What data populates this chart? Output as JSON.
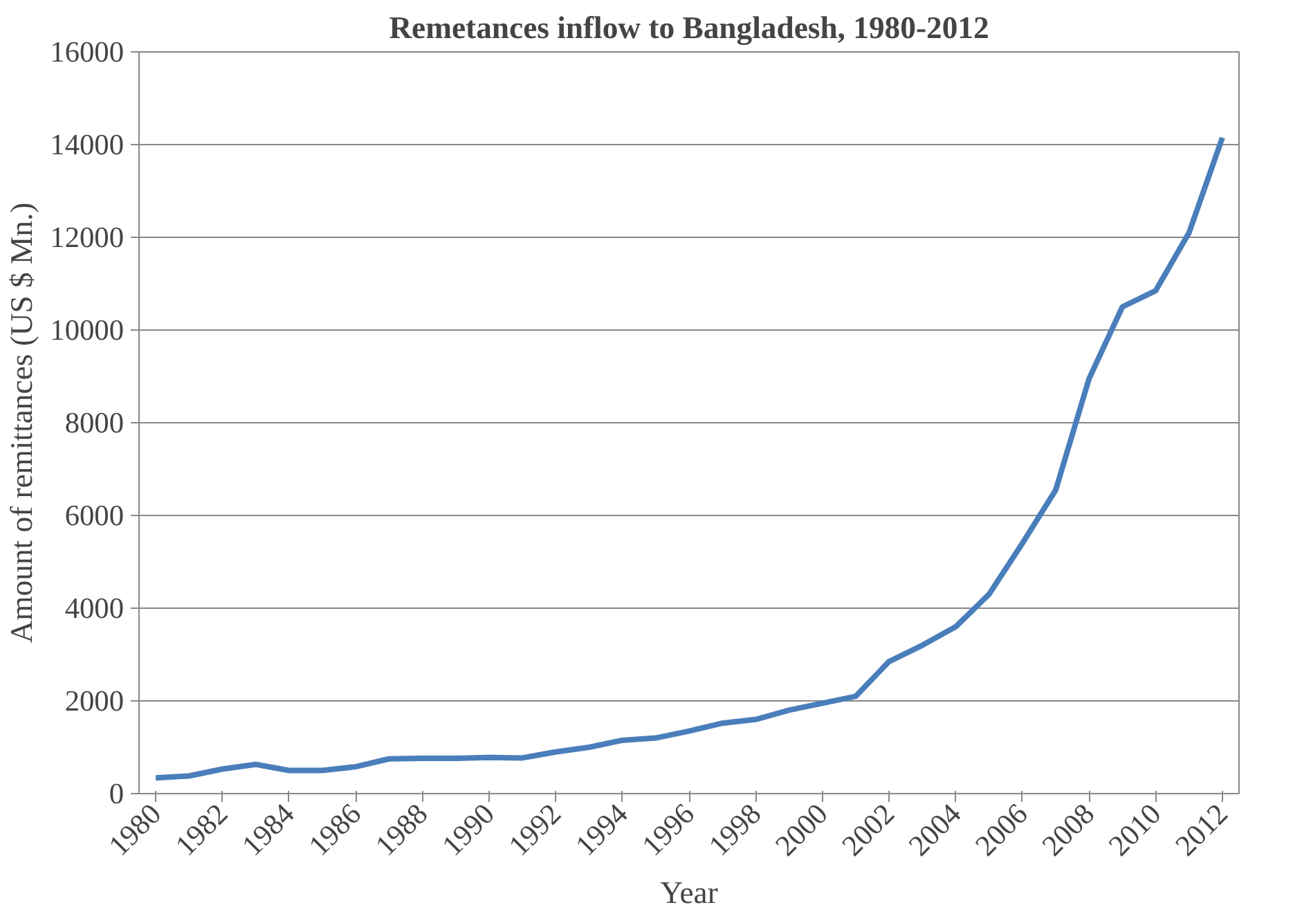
{
  "chart_data": {
    "type": "line",
    "title": "Remetances inflow to Bangladesh, 1980-2012",
    "xlabel": "Year",
    "ylabel": "Amount of remittances (US $ Mn.)",
    "categories": [
      "1980",
      null,
      "1982",
      null,
      "1984",
      null,
      "1986",
      null,
      "1988",
      null,
      "1990",
      null,
      "1992",
      null,
      "1994",
      null,
      "1996",
      null,
      "1998",
      null,
      "2000",
      null,
      "2002",
      null,
      "2004",
      null,
      "2006",
      null,
      "2008",
      null,
      "2010",
      null,
      "2012"
    ],
    "series": [
      {
        "color": "#4a7ebb",
        "values": [
          340,
          380,
          530,
          630,
          500,
          500,
          580,
          750,
          760,
          760,
          780,
          770,
          900,
          1000,
          1150,
          1200,
          1350,
          1520,
          1600,
          1800,
          1950,
          2100,
          2850,
          3200,
          3600,
          4300,
          5400,
          6550,
          8950,
          10500,
          10850,
          12100,
          14150
        ]
      }
    ],
    "ylim": [
      0,
      16000
    ],
    "yticks": [
      0,
      2000,
      4000,
      6000,
      8000,
      10000,
      12000,
      14000,
      16000
    ],
    "grid": "y",
    "marker": "none",
    "line_style": "solid"
  }
}
